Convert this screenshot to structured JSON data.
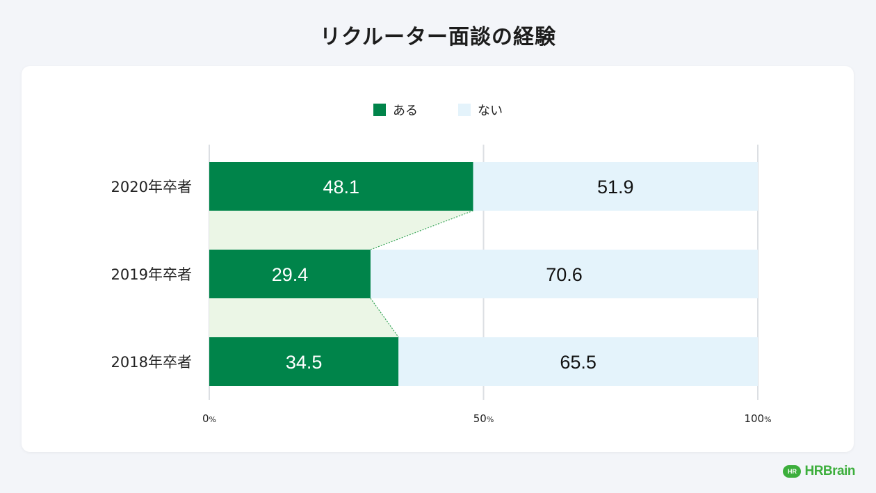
{
  "title": "リクルーター面談の経験",
  "logo": {
    "badge": "HR",
    "text": "HRBrain",
    "color": "#3cae3c"
  },
  "chart_data": {
    "type": "bar",
    "orientation": "horizontal",
    "stacked": true,
    "categories": [
      "2020年卒者",
      "2019年卒者",
      "2018年卒者"
    ],
    "series": [
      {
        "name": "ある",
        "values": [
          48.1,
          29.4,
          34.5
        ],
        "color": "#00844a",
        "label_color": "#ffffff"
      },
      {
        "name": "ない",
        "values": [
          51.9,
          70.6,
          65.5
        ],
        "color": "#e4f3fb",
        "label_color": "#111111"
      }
    ],
    "connector_color": "#ebf6e6",
    "connector_line_color": "#3aa65a",
    "xlim": [
      0,
      100
    ],
    "ticks": [
      {
        "value": 0,
        "label": "0",
        "unit": "%"
      },
      {
        "value": 50,
        "label": "50",
        "unit": "%"
      },
      {
        "value": 100,
        "label": "100",
        "unit": "%"
      }
    ],
    "grid": true,
    "legend": "top-center"
  }
}
